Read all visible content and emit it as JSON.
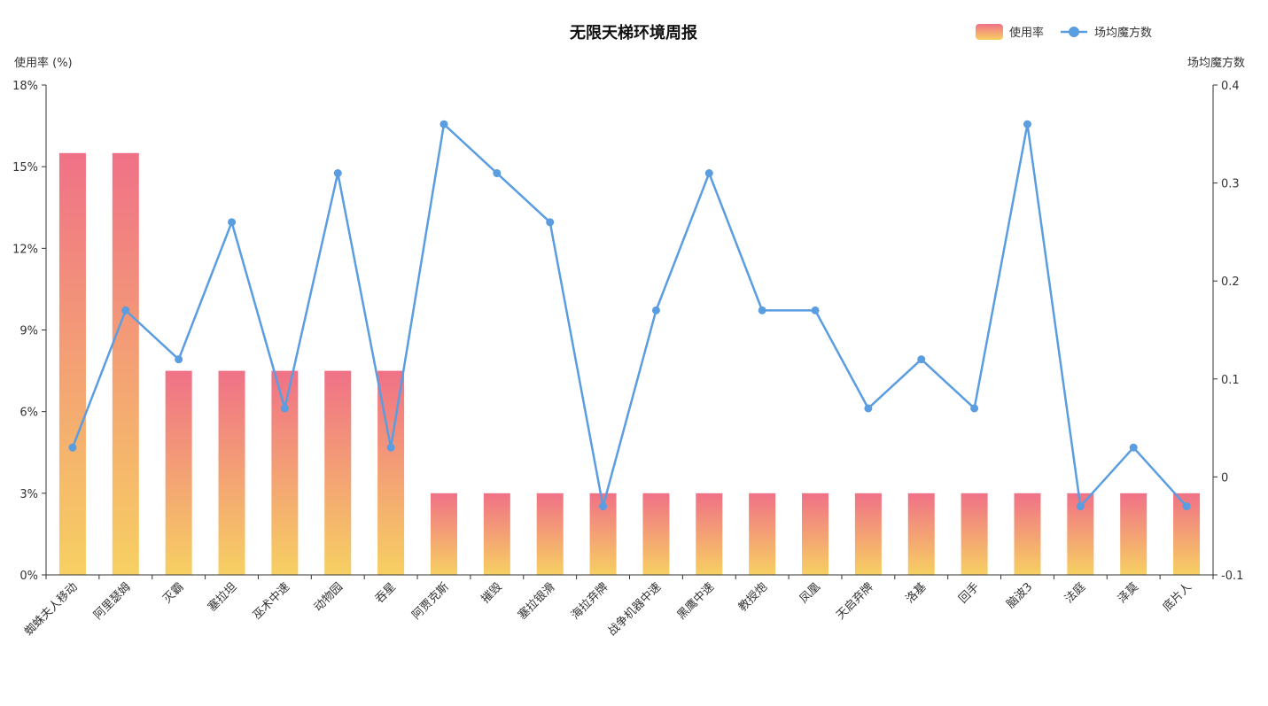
{
  "chart_data": {
    "type": "bar",
    "title": "无限天梯环境周报",
    "legend": {
      "position": "top-right",
      "entries": [
        "使用率",
        "场均魔方数"
      ]
    },
    "grid": false,
    "categories": [
      "蜘蛛夫人移动",
      "阿里瑟姆",
      "灭霸",
      "塞拉坦",
      "巫术中速",
      "动物园",
      "吞星",
      "阿贾克斯",
      "摧毁",
      "塞拉银滑",
      "海拉弃牌",
      "战争机器中速",
      "黑鹰中速",
      "教授炮",
      "凤凰",
      "天启弃牌",
      "洛基",
      "回手",
      "脑波3",
      "法庭",
      "泽莫",
      "底片人"
    ],
    "y_left": {
      "label": "使用率 (%)",
      "min": 0,
      "max": 18,
      "ticks": [
        0,
        3,
        6,
        9,
        12,
        15,
        18
      ],
      "tick_labels": [
        "0%",
        "3%",
        "6%",
        "9%",
        "12%",
        "15%",
        "18%"
      ]
    },
    "y_right": {
      "label": "场均魔方数",
      "min": -0.1,
      "max": 0.4,
      "ticks": [
        -0.1,
        0,
        0.1,
        0.2,
        0.3,
        0.4
      ],
      "tick_labels": [
        "-0.1",
        "0",
        "0.1",
        "0.2",
        "0.3",
        "0.4"
      ]
    },
    "series": [
      {
        "name": "使用率",
        "type": "bar",
        "axis": "left",
        "values": [
          15.5,
          15.5,
          7.5,
          7.5,
          7.5,
          7.5,
          7.5,
          3,
          3,
          3,
          3,
          3,
          3,
          3,
          3,
          3,
          3,
          3,
          3,
          3,
          3,
          3
        ],
        "gradient": [
          "#f07187",
          "#f7d062"
        ]
      },
      {
        "name": "场均魔方数",
        "type": "line",
        "axis": "right",
        "values": [
          0.03,
          0.17,
          0.12,
          0.26,
          0.07,
          0.31,
          0.03,
          0.36,
          0.31,
          0.26,
          -0.03,
          0.17,
          0.31,
          0.17,
          0.17,
          0.07,
          0.12,
          0.07,
          0.36,
          -0.03,
          0.03,
          -0.03
        ],
        "color": "#5a9de0"
      }
    ]
  }
}
